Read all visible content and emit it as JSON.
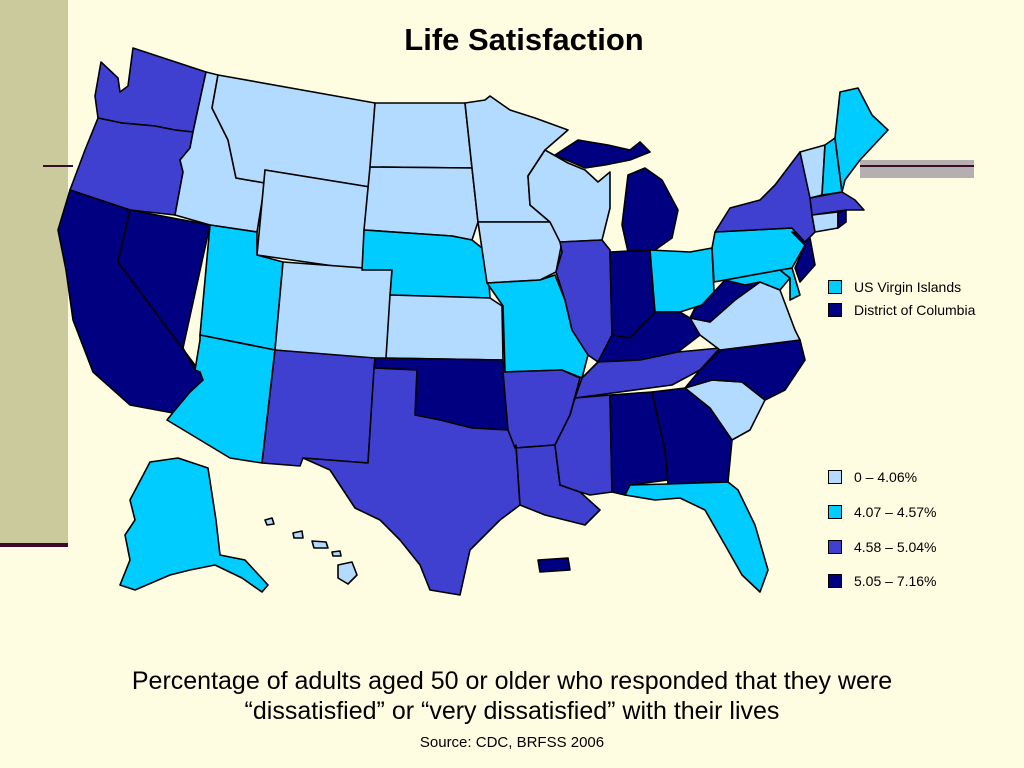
{
  "title": "Life Satisfaction",
  "special_legend": [
    {
      "label": "US Virgin Islands",
      "color": "#00CCFF"
    },
    {
      "label": "District of Columbia",
      "color": "#000080"
    }
  ],
  "legend": [
    {
      "label": "0 – 4.06%",
      "color": "#B3DAFF"
    },
    {
      "label": "4.07 – 4.57%",
      "color": "#00CCFF"
    },
    {
      "label": "4.58 – 5.04%",
      "color": "#3F3FD0"
    },
    {
      "label": "5.05 – 7.16%",
      "color": "#000080"
    }
  ],
  "caption_lines": [
    "Percentage of adults aged 50 or older who responded that they were",
    "“dissatisfied” or “very dissatisfied” with their lives"
  ],
  "source": "Source:  CDC, BRFSS 2006",
  "states": {
    "WA": "4.58 – 5.04%",
    "OR": "4.58 – 5.04%",
    "CA": "5.05 – 7.16%",
    "NV": "5.05 – 7.16%",
    "ID": "0 – 4.06%",
    "MT": "0 – 4.06%",
    "WY": "0 – 4.06%",
    "UT": "4.07 – 4.57%",
    "AZ": "4.07 – 4.57%",
    "CO": "0 – 4.06%",
    "NM": "4.58 – 5.04%",
    "ND": "0 – 4.06%",
    "SD": "0 – 4.06%",
    "NE": "4.07 – 4.57%",
    "KS": "0 – 4.06%",
    "OK": "5.05 – 7.16%",
    "TX": "4.58 – 5.04%",
    "MN": "0 – 4.06%",
    "IA": "0 – 4.06%",
    "MO": "4.07 – 4.57%",
    "AR": "4.58 – 5.04%",
    "LA": "4.58 – 5.04%",
    "WI": "0 – 4.06%",
    "IL": "4.58 – 5.04%",
    "MI": "5.05 – 7.16%",
    "IN": "5.05 – 7.16%",
    "OH": "4.07 – 4.57%",
    "KY": "5.05 – 7.16%",
    "TN": "4.58 – 5.04%",
    "MS": "4.58 – 5.04%",
    "AL": "5.05 – 7.16%",
    "GA": "5.05 – 7.16%",
    "FL": "4.07 – 4.57%",
    "SC": "0 – 4.06%",
    "NC": "5.05 – 7.16%",
    "VA": "0 – 4.06%",
    "WV": "5.05 – 7.16%",
    "MD": "4.07 – 4.57%",
    "DE": "4.07 – 4.57%",
    "PA": "4.07 – 4.57%",
    "NJ": "5.05 – 7.16%",
    "NY": "4.58 – 5.04%",
    "CT": "0 – 4.06%",
    "RI": "5.05 – 7.16%",
    "MA": "4.58 – 5.04%",
    "VT": "0 – 4.06%",
    "NH": "4.07 – 4.57%",
    "ME": "4.07 – 4.57%",
    "AK": "4.07 – 4.57%",
    "HI": "0 – 4.06%",
    "PR": "5.05 – 7.16%"
  }
}
